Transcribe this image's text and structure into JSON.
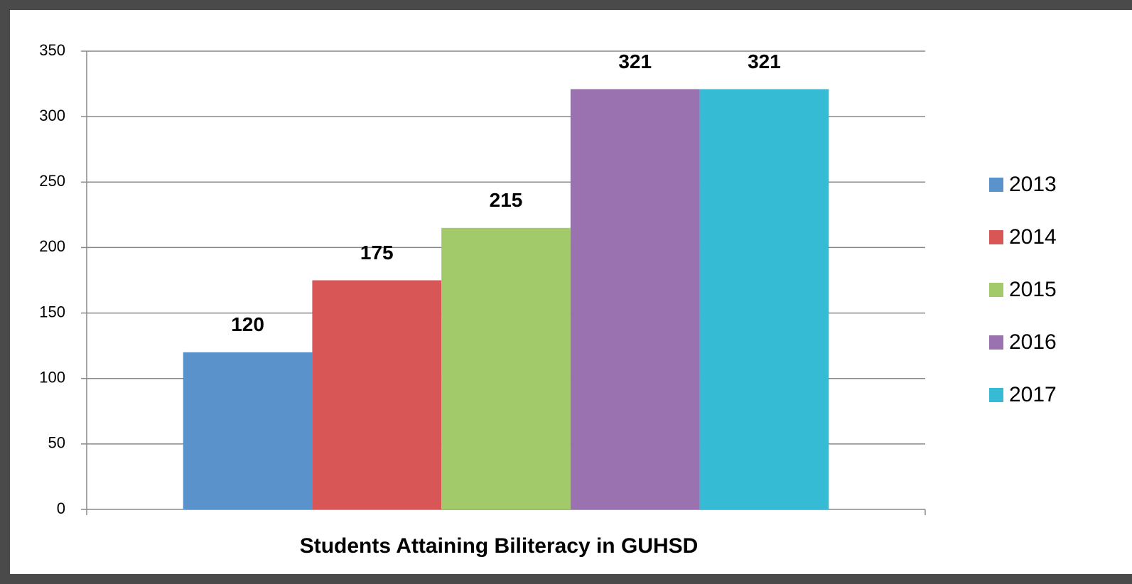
{
  "chart_data": {
    "type": "bar",
    "categories": [
      "Students Attaining Biliteracy in GUHSD"
    ],
    "series": [
      {
        "name": "2013",
        "color": "#5a93cc",
        "values": [
          120
        ]
      },
      {
        "name": "2014",
        "color": "#d85656",
        "values": [
          175
        ]
      },
      {
        "name": "2015",
        "color": "#a2c96a",
        "values": [
          215
        ]
      },
      {
        "name": "2016",
        "color": "#9a72b0",
        "values": [
          321
        ]
      },
      {
        "name": "2017",
        "color": "#35bcd4",
        "values": [
          321
        ]
      }
    ],
    "ylim": [
      0,
      350
    ],
    "yticks": [
      0,
      50,
      100,
      150,
      200,
      250,
      300,
      350
    ],
    "grid": true,
    "legend": "right"
  }
}
